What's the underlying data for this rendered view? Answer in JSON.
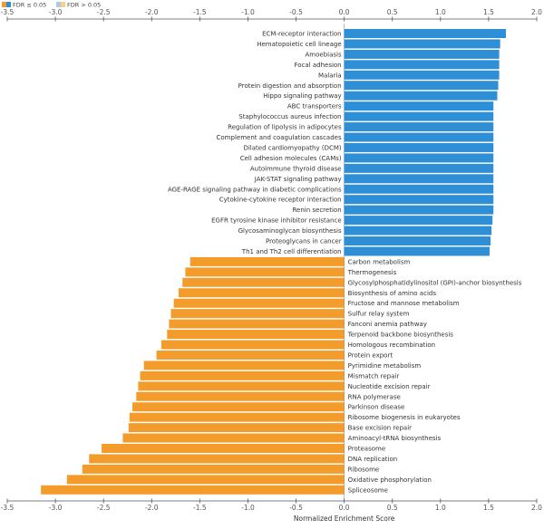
{
  "legend": {
    "items": [
      {
        "label": "FDR ≤ 0.05",
        "colors": [
          "#f39c2b",
          "#2e8fd6"
        ]
      },
      {
        "label": "FDR > 0.05",
        "colors": [
          "#a9cbe9",
          "#f7cf86"
        ]
      }
    ]
  },
  "colors": {
    "positive": "#2e8fd6",
    "negative": "#f39c2b",
    "axis": "#555555",
    "zero_line": "#888888"
  },
  "chart_data": {
    "type": "bar",
    "orientation": "horizontal",
    "xlabel": "Normalized Enrichment Score",
    "xlim": [
      -3.5,
      2.0
    ],
    "xticks": [
      -3.5,
      -3.0,
      -2.5,
      -2.0,
      -1.5,
      -1.0,
      -0.5,
      0.0,
      0.5,
      1.0,
      1.5,
      2.0
    ],
    "xtick_labels": [
      "-3.5",
      "-3.0",
      "-2.5",
      "-2.0",
      "-1.5",
      "-1.0",
      "-0.5",
      "0.0",
      "0.5",
      "1.0",
      "1.5",
      "2.0"
    ],
    "grid": false,
    "legend_position": "top-left",
    "categories": [
      "ECM-receptor interaction",
      "Hematopoietic cell lineage",
      "Amoebiasis",
      "Focal adhesion",
      "Malaria",
      "Protein digestion and absorption",
      "Hippo signaling pathway",
      "ABC transporters",
      "Staphylococcus aureus infection",
      "Regulation of lipolysis in adipocytes",
      "Complement and coagulation cascades",
      "Dilated cardiomyopathy (DCM)",
      "Cell adhesion molecules (CAMs)",
      "Autoimmune thyroid disease",
      "JAK-STAT signaling pathway",
      "AGE-RAGE signaling pathway in diabetic complications",
      "Cytokine-cytokine receptor interaction",
      "Renin secretion",
      "EGFR tyrosine kinase inhibitor resistance",
      "Glycosaminoglycan biosynthesis",
      "Proteoglycans in cancer",
      "Th1 and Th2 cell differentiation",
      "Carbon metabolism",
      "Thermogenesis",
      "Glycosylphosphatidylinositol (GPI)-anchor biosynthesis",
      "Biosynthesis of amino acids",
      "Fructose and mannose metabolism",
      "Sulfur relay system",
      "Fanconi anemia pathway",
      "Terpenoid backbone biosynthesis",
      "Homologous recombination",
      "Protein export",
      "Pyrimidine metabolism",
      "Mismatch repair",
      "Nucleotide excision repair",
      "RNA polymerase",
      "Parkinson disease",
      "Ribosome biogenesis in eukaryotes",
      "Base excision repair",
      "Aminoacyl-tRNA biosynthesis",
      "Proteasome",
      "DNA replication",
      "Ribosome",
      "Oxidative phosphorylation",
      "Spliceosome"
    ],
    "values": [
      1.68,
      1.62,
      1.61,
      1.61,
      1.61,
      1.6,
      1.59,
      1.55,
      1.55,
      1.55,
      1.55,
      1.55,
      1.55,
      1.55,
      1.55,
      1.55,
      1.55,
      1.55,
      1.54,
      1.53,
      1.52,
      1.51,
      -1.6,
      -1.65,
      -1.68,
      -1.72,
      -1.77,
      -1.8,
      -1.82,
      -1.84,
      -1.9,
      -1.95,
      -2.08,
      -2.12,
      -2.14,
      -2.16,
      -2.2,
      -2.23,
      -2.24,
      -2.3,
      -2.52,
      -2.65,
      -2.72,
      -2.88,
      -3.15
    ]
  }
}
